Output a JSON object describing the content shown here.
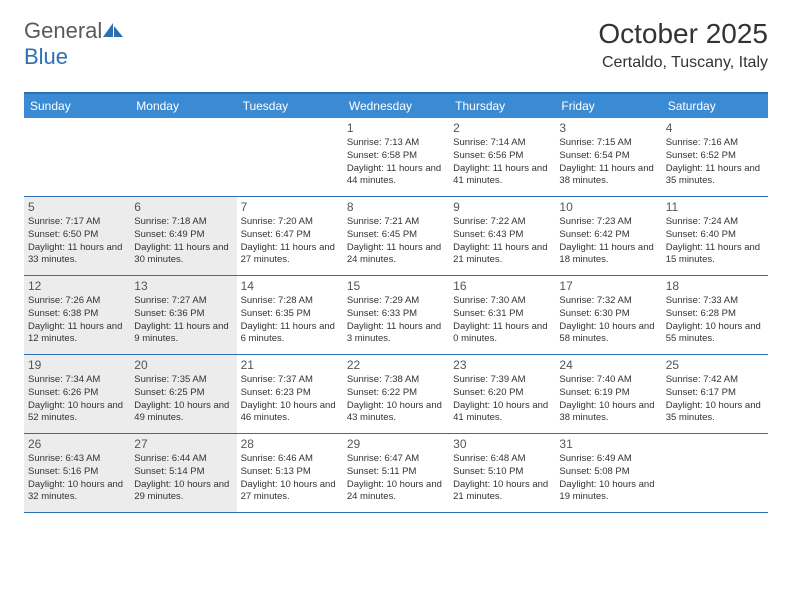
{
  "logo": {
    "textGeneral": "General",
    "textBlue": "Blue"
  },
  "title": "October 2025",
  "location": "Certaldo, Tuscany, Italy",
  "colors": {
    "headerBg": "#3b8bd4",
    "border": "#2d6fb5",
    "shaded": "#ececec",
    "text": "#333333"
  },
  "dayNames": [
    "Sunday",
    "Monday",
    "Tuesday",
    "Wednesday",
    "Thursday",
    "Friday",
    "Saturday"
  ],
  "weeks": [
    [
      {
        "shaded": false
      },
      {
        "shaded": false
      },
      {
        "shaded": false
      },
      {
        "num": "1",
        "shaded": false,
        "sunrise": "7:13 AM",
        "sunset": "6:58 PM",
        "daylight": "11 hours and 44 minutes."
      },
      {
        "num": "2",
        "shaded": false,
        "sunrise": "7:14 AM",
        "sunset": "6:56 PM",
        "daylight": "11 hours and 41 minutes."
      },
      {
        "num": "3",
        "shaded": false,
        "sunrise": "7:15 AM",
        "sunset": "6:54 PM",
        "daylight": "11 hours and 38 minutes."
      },
      {
        "num": "4",
        "shaded": false,
        "sunrise": "7:16 AM",
        "sunset": "6:52 PM",
        "daylight": "11 hours and 35 minutes."
      }
    ],
    [
      {
        "num": "5",
        "shaded": true,
        "sunrise": "7:17 AM",
        "sunset": "6:50 PM",
        "daylight": "11 hours and 33 minutes."
      },
      {
        "num": "6",
        "shaded": true,
        "sunrise": "7:18 AM",
        "sunset": "6:49 PM",
        "daylight": "11 hours and 30 minutes."
      },
      {
        "num": "7",
        "shaded": false,
        "sunrise": "7:20 AM",
        "sunset": "6:47 PM",
        "daylight": "11 hours and 27 minutes."
      },
      {
        "num": "8",
        "shaded": false,
        "sunrise": "7:21 AM",
        "sunset": "6:45 PM",
        "daylight": "11 hours and 24 minutes."
      },
      {
        "num": "9",
        "shaded": false,
        "sunrise": "7:22 AM",
        "sunset": "6:43 PM",
        "daylight": "11 hours and 21 minutes."
      },
      {
        "num": "10",
        "shaded": false,
        "sunrise": "7:23 AM",
        "sunset": "6:42 PM",
        "daylight": "11 hours and 18 minutes."
      },
      {
        "num": "11",
        "shaded": false,
        "sunrise": "7:24 AM",
        "sunset": "6:40 PM",
        "daylight": "11 hours and 15 minutes."
      }
    ],
    [
      {
        "num": "12",
        "shaded": true,
        "sunrise": "7:26 AM",
        "sunset": "6:38 PM",
        "daylight": "11 hours and 12 minutes."
      },
      {
        "num": "13",
        "shaded": true,
        "sunrise": "7:27 AM",
        "sunset": "6:36 PM",
        "daylight": "11 hours and 9 minutes."
      },
      {
        "num": "14",
        "shaded": false,
        "sunrise": "7:28 AM",
        "sunset": "6:35 PM",
        "daylight": "11 hours and 6 minutes."
      },
      {
        "num": "15",
        "shaded": false,
        "sunrise": "7:29 AM",
        "sunset": "6:33 PM",
        "daylight": "11 hours and 3 minutes."
      },
      {
        "num": "16",
        "shaded": false,
        "sunrise": "7:30 AM",
        "sunset": "6:31 PM",
        "daylight": "11 hours and 0 minutes."
      },
      {
        "num": "17",
        "shaded": false,
        "sunrise": "7:32 AM",
        "sunset": "6:30 PM",
        "daylight": "10 hours and 58 minutes."
      },
      {
        "num": "18",
        "shaded": false,
        "sunrise": "7:33 AM",
        "sunset": "6:28 PM",
        "daylight": "10 hours and 55 minutes."
      }
    ],
    [
      {
        "num": "19",
        "shaded": true,
        "sunrise": "7:34 AM",
        "sunset": "6:26 PM",
        "daylight": "10 hours and 52 minutes."
      },
      {
        "num": "20",
        "shaded": true,
        "sunrise": "7:35 AM",
        "sunset": "6:25 PM",
        "daylight": "10 hours and 49 minutes."
      },
      {
        "num": "21",
        "shaded": false,
        "sunrise": "7:37 AM",
        "sunset": "6:23 PM",
        "daylight": "10 hours and 46 minutes."
      },
      {
        "num": "22",
        "shaded": false,
        "sunrise": "7:38 AM",
        "sunset": "6:22 PM",
        "daylight": "10 hours and 43 minutes."
      },
      {
        "num": "23",
        "shaded": false,
        "sunrise": "7:39 AM",
        "sunset": "6:20 PM",
        "daylight": "10 hours and 41 minutes."
      },
      {
        "num": "24",
        "shaded": false,
        "sunrise": "7:40 AM",
        "sunset": "6:19 PM",
        "daylight": "10 hours and 38 minutes."
      },
      {
        "num": "25",
        "shaded": false,
        "sunrise": "7:42 AM",
        "sunset": "6:17 PM",
        "daylight": "10 hours and 35 minutes."
      }
    ],
    [
      {
        "num": "26",
        "shaded": true,
        "sunrise": "6:43 AM",
        "sunset": "5:16 PM",
        "daylight": "10 hours and 32 minutes."
      },
      {
        "num": "27",
        "shaded": true,
        "sunrise": "6:44 AM",
        "sunset": "5:14 PM",
        "daylight": "10 hours and 29 minutes."
      },
      {
        "num": "28",
        "shaded": false,
        "sunrise": "6:46 AM",
        "sunset": "5:13 PM",
        "daylight": "10 hours and 27 minutes."
      },
      {
        "num": "29",
        "shaded": false,
        "sunrise": "6:47 AM",
        "sunset": "5:11 PM",
        "daylight": "10 hours and 24 minutes."
      },
      {
        "num": "30",
        "shaded": false,
        "sunrise": "6:48 AM",
        "sunset": "5:10 PM",
        "daylight": "10 hours and 21 minutes."
      },
      {
        "num": "31",
        "shaded": false,
        "sunrise": "6:49 AM",
        "sunset": "5:08 PM",
        "daylight": "10 hours and 19 minutes."
      },
      {
        "shaded": false
      }
    ]
  ],
  "labels": {
    "sunrise": "Sunrise:",
    "sunset": "Sunset:",
    "daylight": "Daylight:"
  }
}
